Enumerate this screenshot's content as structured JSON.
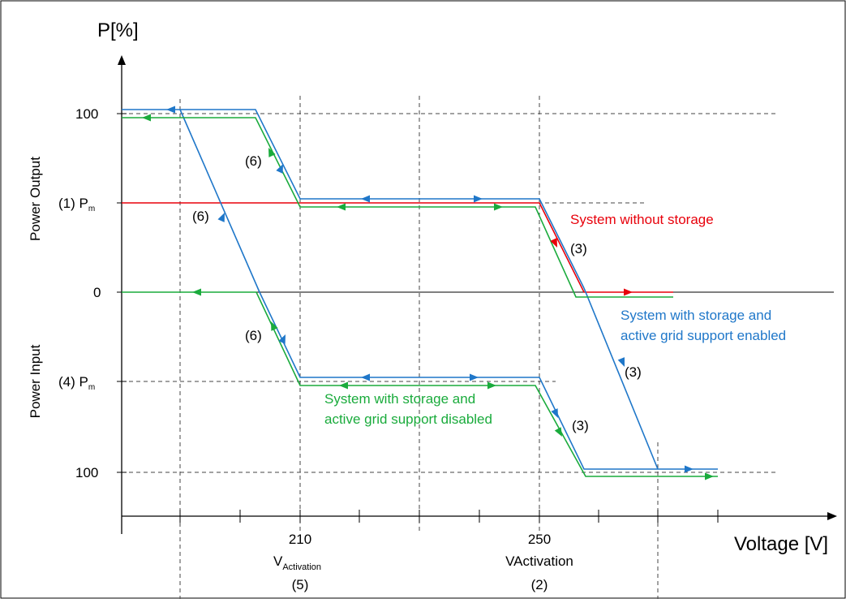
{
  "axes": {
    "y_title": "P[%]",
    "x_title": "Voltage [V]",
    "power_output_label": "Power Output",
    "power_input_label": "Power Input"
  },
  "y_ticks": {
    "top_100": "100",
    "pm_output_prefix": "(1) P",
    "pm_output_sub": "m",
    "zero": "0",
    "pm_input_prefix": "(4) P",
    "pm_input_sub": "m",
    "bottom_100": "100"
  },
  "x_ticks": {
    "v210": "210",
    "v210_name": "V",
    "v210_sub": "Activation",
    "v210_ref": "(5)",
    "v250": "250",
    "v250_name": "VActivation",
    "v250_ref": "(2)"
  },
  "annotations": {
    "step6_upper": "(6)",
    "step6_middle": "(6)",
    "step6_lower": "(6)",
    "step3_red": "(3)",
    "step3_blue": "(3)",
    "step3_green": "(3)"
  },
  "legend": {
    "red_line1": "System without storage",
    "blue_line1": "System with storage and",
    "blue_line2": "active grid support enabled",
    "green_line1": "System with storage and",
    "green_line2": "active grid support disabled"
  },
  "colors": {
    "red": "#e8000b",
    "blue": "#1f77c9",
    "green": "#1aab3c",
    "axis": "#000000",
    "grid": "#444444"
  }
}
